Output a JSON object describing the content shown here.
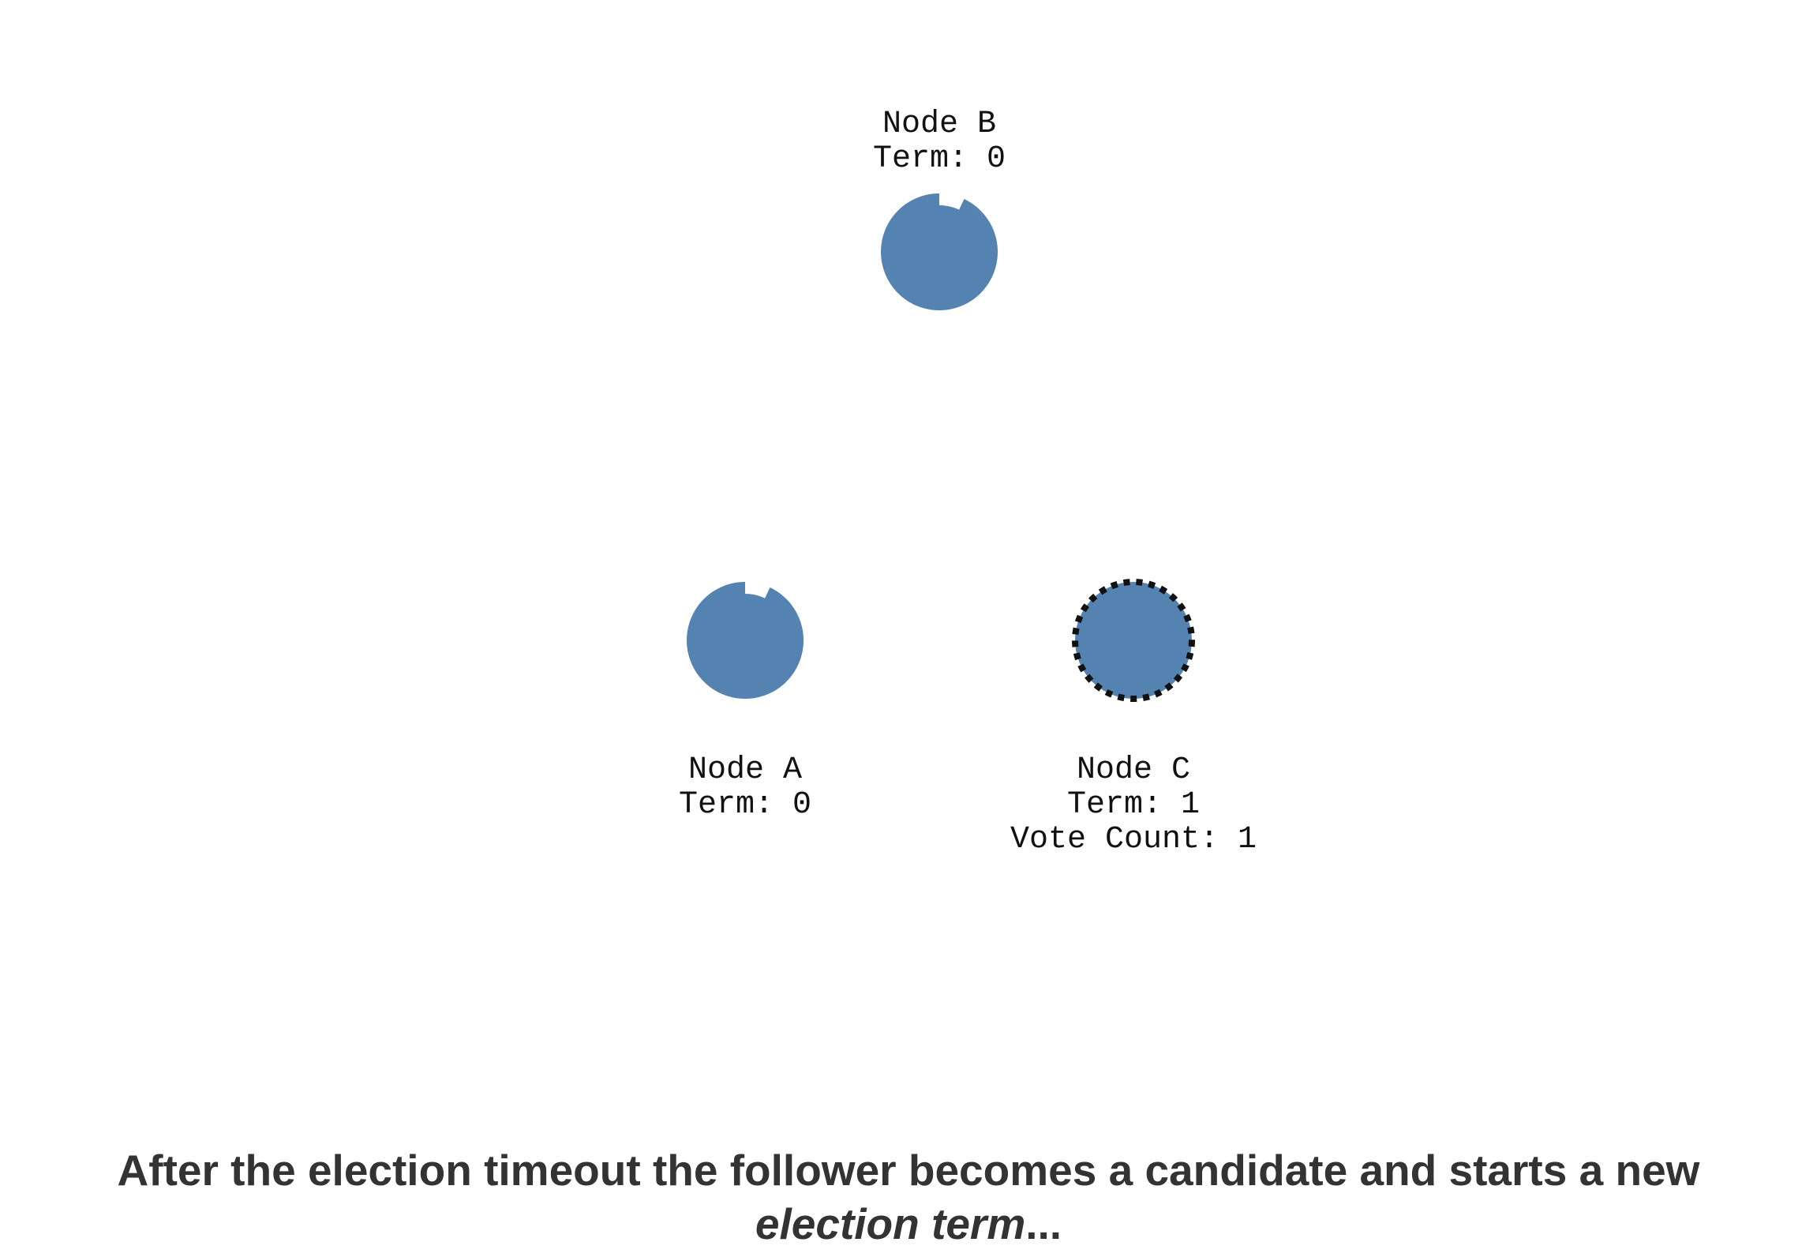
{
  "colors": {
    "node_fill": "#5482b1",
    "candidate_border": "#111111",
    "text": "#111111",
    "caption": "#333333"
  },
  "nodes": {
    "b": {
      "name": "Node B",
      "term": "Term: 0",
      "state": "follower",
      "timeout_remaining": 0.93
    },
    "a": {
      "name": "Node A",
      "term": "Term: 0",
      "state": "follower",
      "timeout_remaining": 0.93
    },
    "c": {
      "name": "Node C",
      "term": "Term: 1",
      "vote_count": "Vote Count: 1",
      "state": "candidate"
    }
  },
  "caption": {
    "main": "After the election timeout the follower becomes a candidate and starts a new",
    "emphasis": "election term",
    "suffix": "..."
  }
}
